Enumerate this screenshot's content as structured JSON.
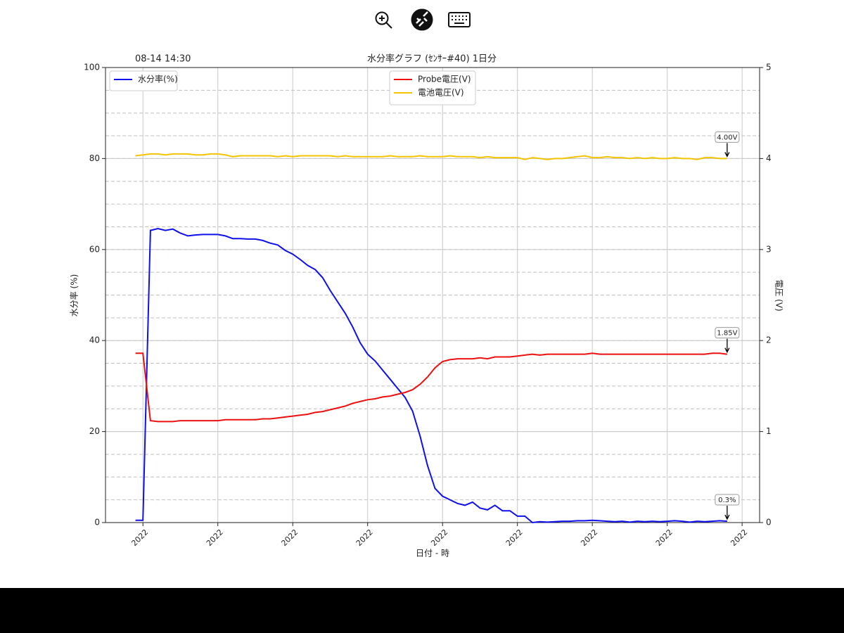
{
  "chart_data": {
    "type": "line",
    "title": "水分率グラフ (ｾﾝｻｰ#40) 1日分",
    "corner_text": "08-14 14:30",
    "xlabel": "日付 - 時",
    "ylabel": "水分率 (%)",
    "y2label": "電圧 (V)",
    "x": [
      14.7,
      15,
      15.3,
      15.6,
      15.9,
      16.2,
      16.5,
      16.8,
      17.1,
      17.4,
      17.7,
      18,
      18.3,
      18.6,
      18.9,
      19.2,
      19.5,
      19.8,
      20.1,
      20.4,
      20.7,
      21,
      21.3,
      21.6,
      21.9,
      22.2,
      22.5,
      22.8,
      23.1,
      23.4,
      23.7,
      24,
      24.3,
      24.6,
      24.9,
      25.2,
      25.5,
      25.8,
      26.1,
      26.4,
      26.7,
      27,
      27.3,
      27.6,
      27.9,
      28.2,
      28.5,
      28.8,
      29.1,
      29.4,
      29.7,
      30,
      30.3,
      30.6,
      30.9,
      31.2,
      31.5,
      31.8,
      32.1,
      32.4,
      32.7,
      33,
      33.3,
      33.6,
      33.9,
      34.2,
      34.5,
      34.8,
      35.1,
      35.4,
      35.7,
      36,
      36.3,
      36.6,
      36.9,
      37.2,
      37.5,
      37.8,
      38.1,
      38.4
    ],
    "xlim": [
      13.5,
      39.7
    ],
    "xticks": [
      {
        "value": 15,
        "label": "2022"
      },
      {
        "value": 18,
        "label": "2022"
      },
      {
        "value": 21,
        "label": "2022"
      },
      {
        "value": 24,
        "label": "2022"
      },
      {
        "value": 27,
        "label": "2022"
      },
      {
        "value": 30,
        "label": "2022"
      },
      {
        "value": 33,
        "label": "2022"
      },
      {
        "value": 36,
        "label": "2022"
      },
      {
        "value": 39,
        "label": "2022"
      }
    ],
    "ylim": [
      0,
      100
    ],
    "yticks": [
      0,
      20,
      40,
      60,
      80,
      100
    ],
    "y2lim": [
      0,
      5
    ],
    "y2ticks": [
      0,
      1,
      2,
      3,
      4,
      5
    ],
    "y2grid": [
      0.25,
      0.5,
      0.75,
      1,
      1.25,
      1.5,
      1.75,
      2,
      2.25,
      2.5,
      2.75,
      3,
      3.25,
      3.5,
      3.75,
      4,
      4.25,
      4.5,
      4.75
    ],
    "grid": true,
    "legend": "upper left",
    "legend2": "upper center",
    "series": [
      {
        "name": "水分率(%)",
        "color": "#1010ee",
        "end_label": "0.3%",
        "values": [
          0.5,
          0.5,
          64.2,
          64.6,
          64.2,
          64.5,
          63.6,
          63,
          63.2,
          63.3,
          63.3,
          63.3,
          63,
          62.4,
          62.4,
          62.3,
          62.3,
          62,
          61.4,
          61,
          59.8,
          59,
          57.8,
          56.5,
          55.6,
          53.8,
          51,
          48.5,
          46,
          43,
          39.5,
          37,
          35.5,
          33.5,
          31.5,
          29.5,
          27.5,
          24.5,
          19,
          12.5,
          7.5,
          5.8,
          5,
          4.2,
          3.8,
          4.5,
          3.2,
          2.8,
          3.8,
          2.6,
          2.6,
          1.4,
          1.4,
          0,
          0.2,
          0.1,
          0.2,
          0.3,
          0.3,
          0.4,
          0.4,
          0.5,
          0.4,
          0.3,
          0.2,
          0.3,
          0.1,
          0.3,
          0.2,
          0.3,
          0.2,
          0.3,
          0.4,
          0.3,
          0.1,
          0.3,
          0.2,
          0.3,
          0.4,
          0.3
        ]
      },
      {
        "name": "Probe電圧(V)",
        "color": "#ee1010",
        "axis": "y2",
        "end_label": "1.85V",
        "values": [
          1.86,
          1.86,
          1.12,
          1.11,
          1.11,
          1.11,
          1.12,
          1.12,
          1.12,
          1.12,
          1.12,
          1.12,
          1.13,
          1.13,
          1.13,
          1.13,
          1.13,
          1.14,
          1.14,
          1.15,
          1.16,
          1.17,
          1.18,
          1.19,
          1.21,
          1.22,
          1.24,
          1.26,
          1.28,
          1.31,
          1.33,
          1.35,
          1.36,
          1.38,
          1.39,
          1.41,
          1.43,
          1.46,
          1.52,
          1.6,
          1.7,
          1.77,
          1.79,
          1.8,
          1.8,
          1.8,
          1.81,
          1.8,
          1.82,
          1.82,
          1.82,
          1.83,
          1.84,
          1.85,
          1.84,
          1.85,
          1.85,
          1.85,
          1.85,
          1.85,
          1.85,
          1.86,
          1.85,
          1.85,
          1.85,
          1.85,
          1.85,
          1.85,
          1.85,
          1.85,
          1.85,
          1.85,
          1.85,
          1.85,
          1.85,
          1.85,
          1.85,
          1.86,
          1.86,
          1.85
        ]
      },
      {
        "name": "電池電圧(V)",
        "color": "#f5c400",
        "axis": "y2",
        "end_label": "4.00V",
        "values": [
          4.03,
          4.04,
          4.05,
          4.05,
          4.04,
          4.05,
          4.05,
          4.05,
          4.04,
          4.04,
          4.05,
          4.05,
          4.04,
          4.02,
          4.03,
          4.03,
          4.03,
          4.03,
          4.03,
          4.02,
          4.03,
          4.02,
          4.03,
          4.03,
          4.03,
          4.03,
          4.03,
          4.02,
          4.03,
          4.02,
          4.02,
          4.02,
          4.02,
          4.02,
          4.03,
          4.02,
          4.02,
          4.02,
          4.03,
          4.02,
          4.02,
          4.02,
          4.03,
          4.02,
          4.02,
          4.02,
          4.01,
          4.02,
          4.01,
          4.01,
          4.01,
          4.01,
          3.99,
          4.01,
          4,
          3.99,
          4,
          4,
          4.01,
          4.02,
          4.03,
          4.01,
          4.01,
          4.02,
          4.01,
          4.01,
          4,
          4.01,
          4,
          4.01,
          4,
          4,
          4.01,
          4,
          4,
          3.99,
          4.01,
          4.01,
          4,
          4
        ]
      }
    ]
  }
}
